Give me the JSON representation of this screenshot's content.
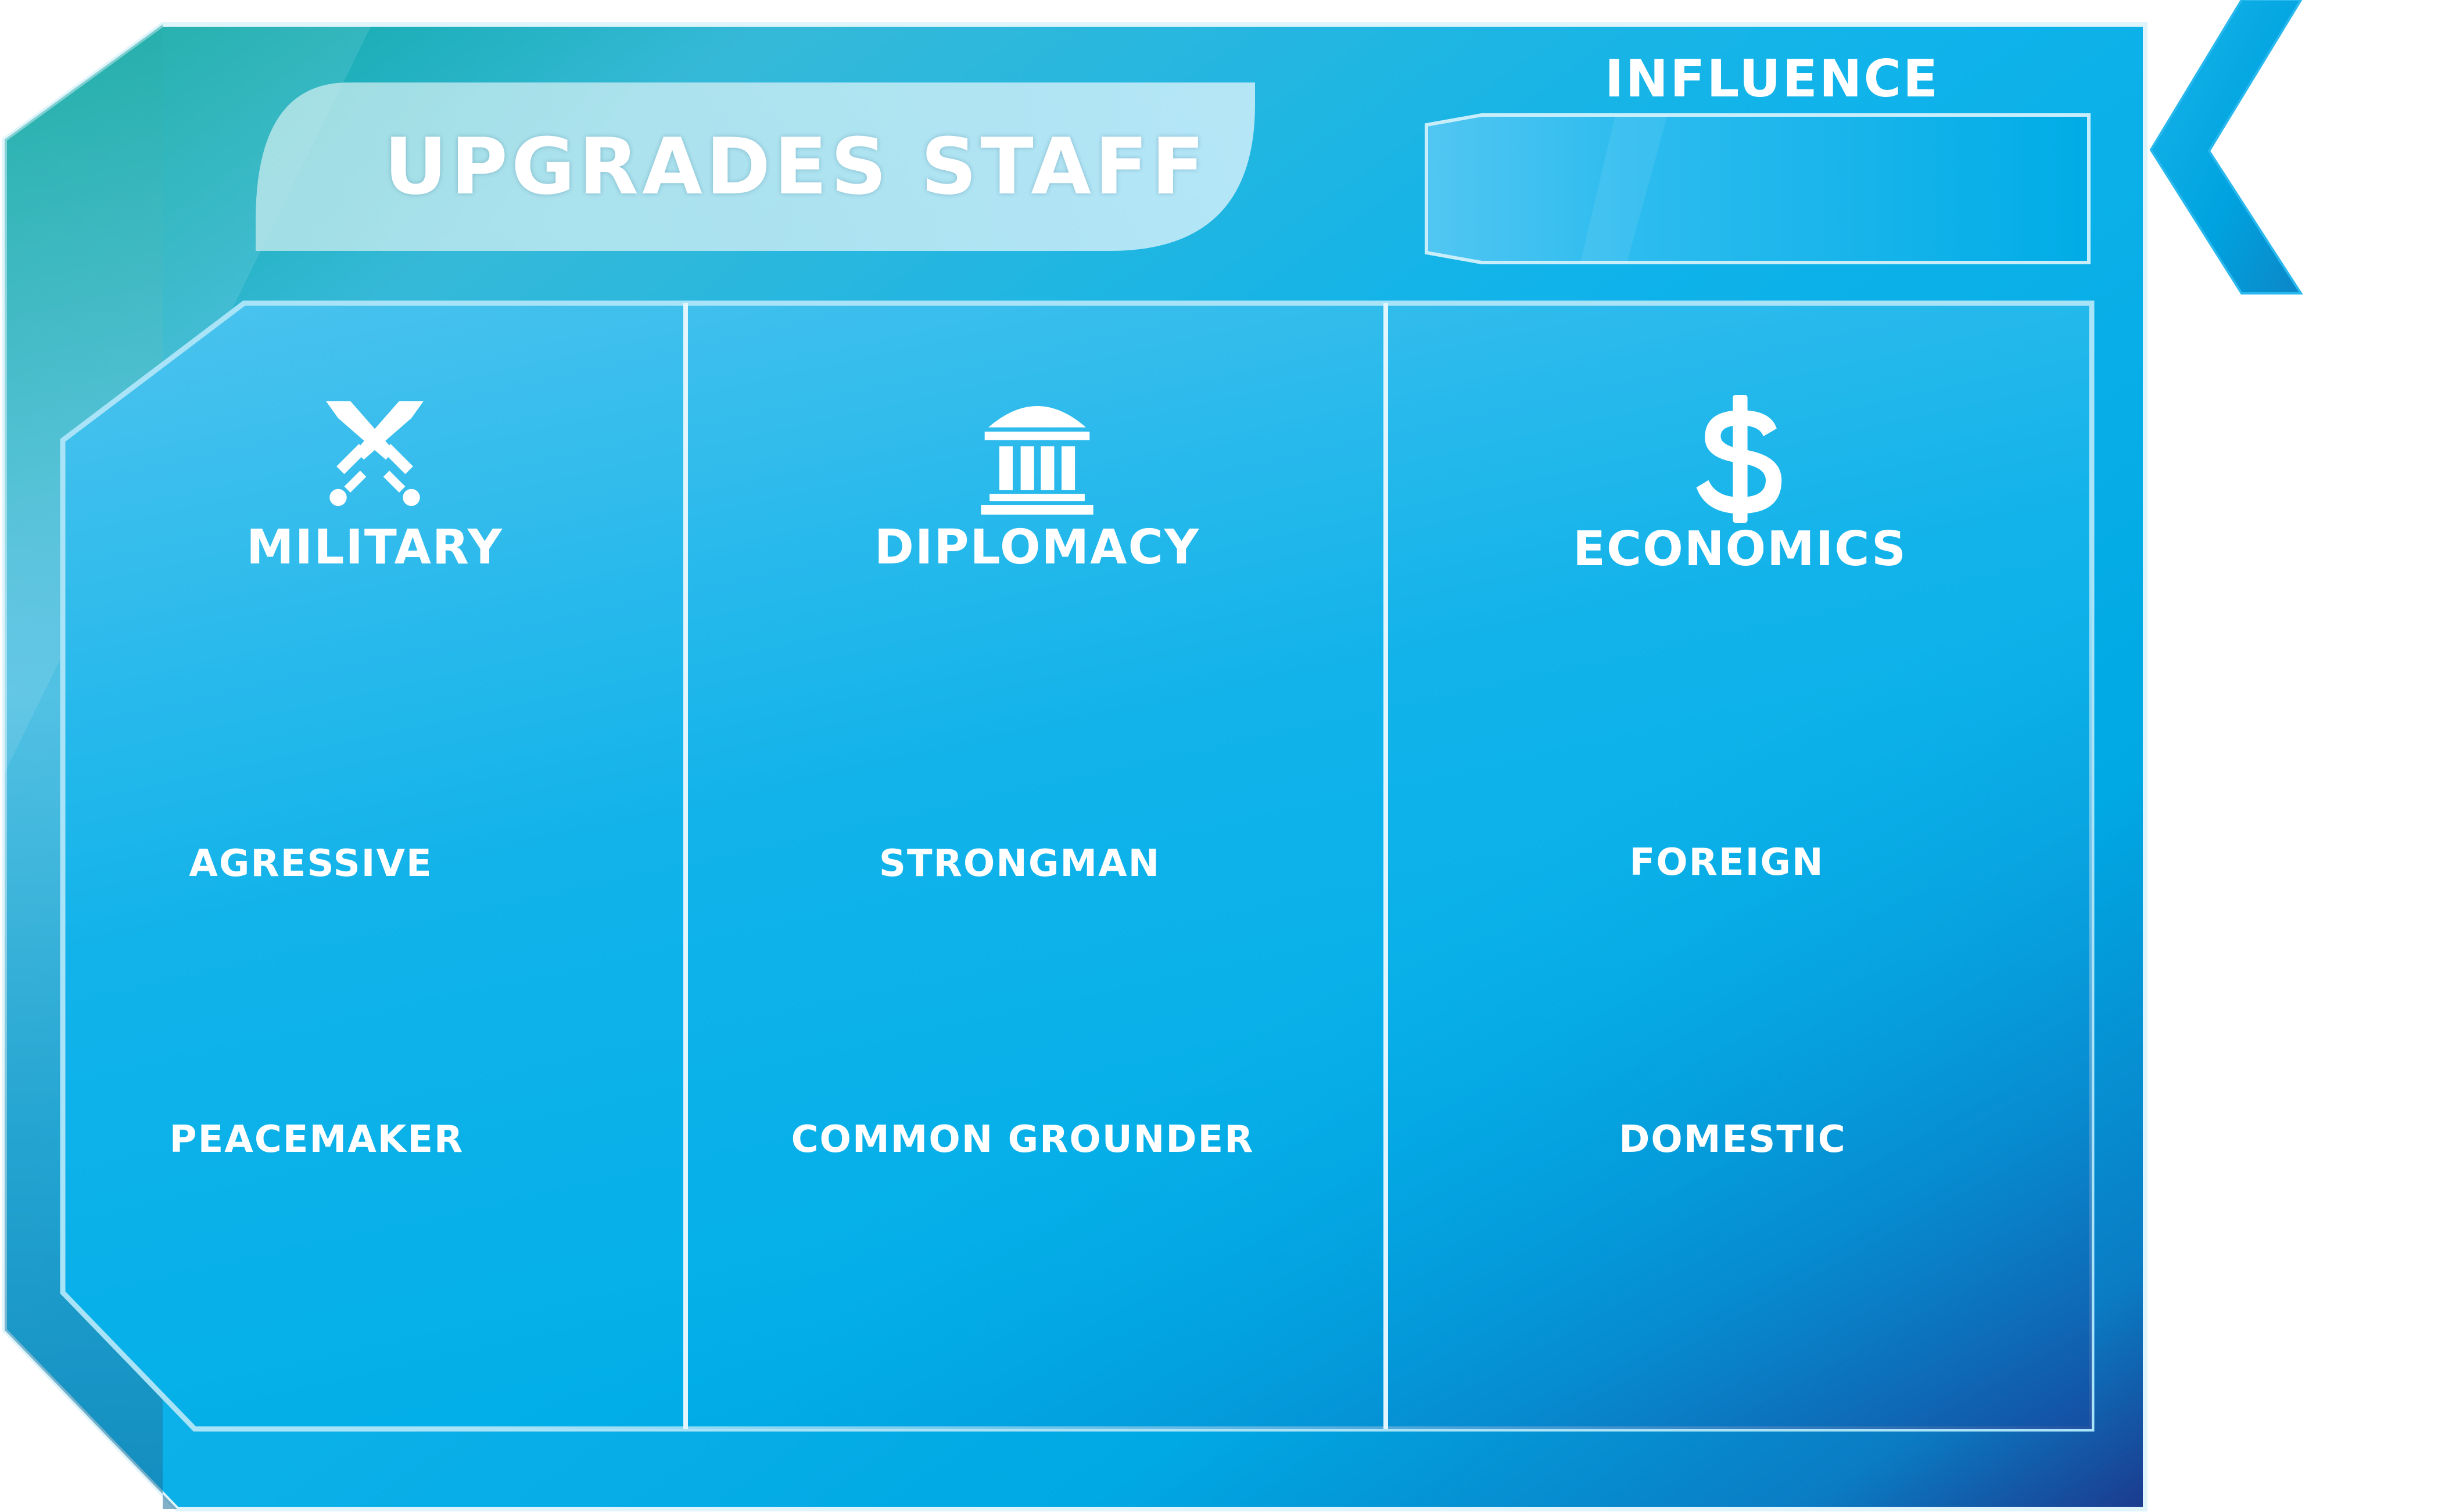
{
  "panel": {
    "title": "UPGRADES STAFF"
  },
  "influence": {
    "label": "INFLUENCE",
    "value": ""
  },
  "columns": [
    {
      "heading": "MILITARY",
      "icon": "crossed-swords-icon",
      "options": [
        "AGRESSIVE",
        "PEACEMAKER"
      ]
    },
    {
      "heading": "DIPLOMACY",
      "icon": "government-building-icon",
      "options": [
        "STRONGMAN",
        "COMMON GROUNDER"
      ]
    },
    {
      "heading": "ECONOMICS",
      "icon": "dollar-icon",
      "options": [
        "FOREIGN",
        "DOMESTIC"
      ]
    }
  ],
  "colors": {
    "panel_main": "#00aee8",
    "panel_teal": "#0aa49a",
    "panel_dark_blue": "#1a3d8f",
    "border_light": "#c5ecfa",
    "text": "#ffffff"
  }
}
